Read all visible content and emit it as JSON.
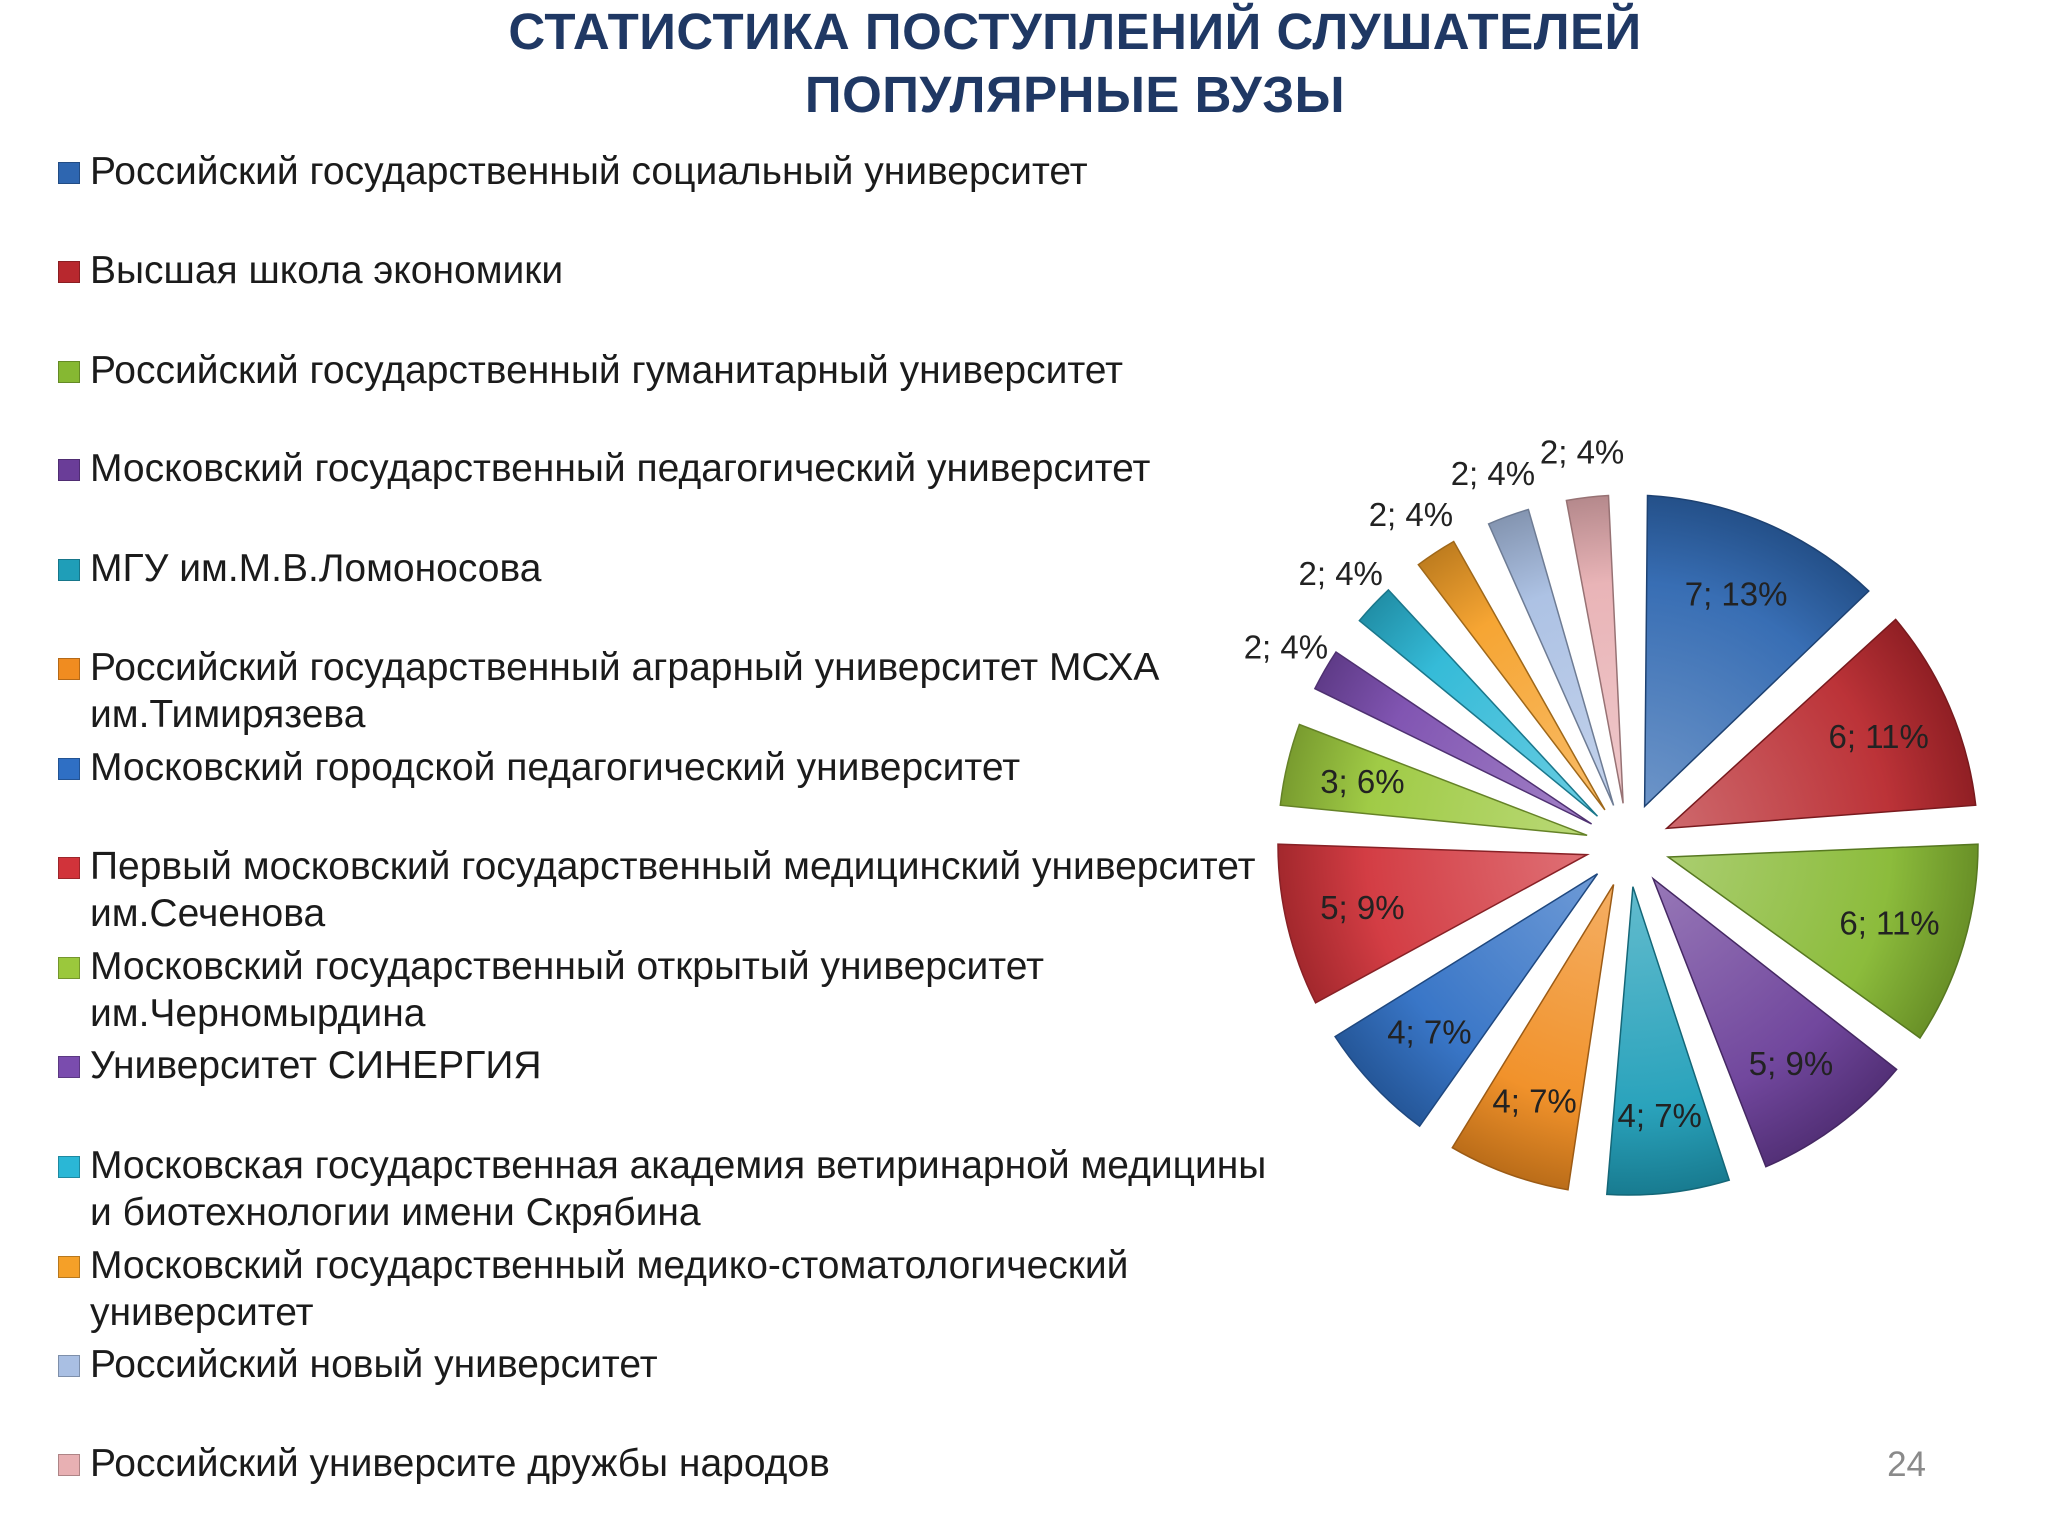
{
  "title_line1": "СТАТИСТИКА ПОСТУПЛЕНИЙ СЛУШАТЕЛЕЙ",
  "title_line2": "ПОПУЛЯРНЫЕ ВУЗЫ",
  "page_number": "24",
  "chart_data": {
    "type": "pie",
    "title": "",
    "legend_position": "left",
    "series": [
      {
        "name": "Российский государственный социальный университет",
        "value": 7,
        "percent": "13%",
        "label": "7; 13%",
        "color": "#2e66b0"
      },
      {
        "name": "Высшая школа экономики",
        "value": 6,
        "percent": "11%",
        "label": "6; 11%",
        "color": "#b8282e"
      },
      {
        "name": "Российский государственный гуманитарный университет",
        "value": 6,
        "percent": "11%",
        "label": "6; 11%",
        "color": "#86b832"
      },
      {
        "name": "Московский государственный педагогический университет",
        "value": 5,
        "percent": "9%",
        "label": "5; 9%",
        "color": "#6a3d98"
      },
      {
        "name": "МГУ им.М.В.Ломоносова",
        "value": 4,
        "percent": "7%",
        "label": "4; 7%",
        "color": "#1f9eb8"
      },
      {
        "name": "Российский государственный аграрный университет МСХА\nим.Тимирязева",
        "value": 4,
        "percent": "7%",
        "label": "4; 7%",
        "color": "#f08c20"
      },
      {
        "name": "Московский городской педагогический университет",
        "value": 4,
        "percent": "7%",
        "label": "4; 7%",
        "color": "#2f6fc4"
      },
      {
        "name": "Первый московский государственный медицинский университет\nим.Сеченова",
        "value": 5,
        "percent": "9%",
        "label": "5; 9%",
        "color": "#d1333a"
      },
      {
        "name": "Московский государственный открытый университет\nим.Черномырдина",
        "value": 3,
        "percent": "6%",
        "label": "3; 6%",
        "color": "#9bc83c"
      },
      {
        "name": "Университет СИНЕРГИЯ",
        "value": 2,
        "percent": "4%",
        "label": "2; 4%",
        "color": "#7a4cae"
      },
      {
        "name": "Московская государственная академия ветиринарной медицины\nи биотехнологии имени Скрябина",
        "value": 2,
        "percent": "4%",
        "label": "2; 4%",
        "color": "#2ab7d6"
      },
      {
        "name": "Московский государственный медико-стоматологический\nуниверситет",
        "value": 2,
        "percent": "4%",
        "label": "2; 4%",
        "color": "#f5a028"
      },
      {
        "name": "Российский новый университет",
        "value": 2,
        "percent": "4%",
        "label": "2; 4%",
        "color": "#a9bfe3"
      },
      {
        "name": "Российский университе дружбы народов",
        "value": 2,
        "percent": "4%",
        "label": "2; 4%",
        "color": "#e8b0b3"
      }
    ]
  }
}
